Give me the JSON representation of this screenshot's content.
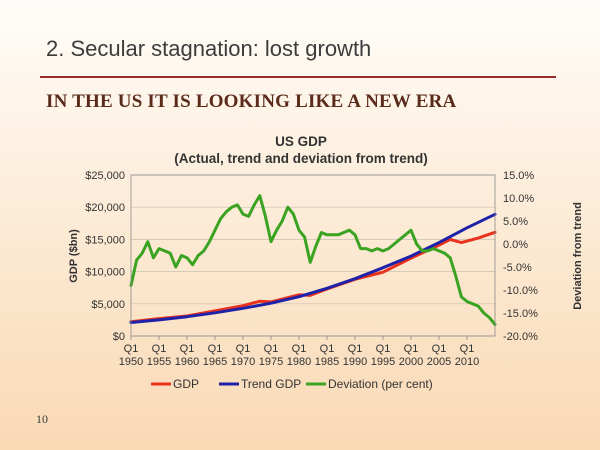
{
  "slide": {
    "heading": "2. Secular stagnation: lost growth",
    "subheading": "IN THE US IT IS LOOKING LIKE A NEW ERA",
    "page_number": "10"
  },
  "colors": {
    "gdp": "#e8321d",
    "trend": "#1e22a8",
    "deviation": "#3aa321",
    "heading_rule": "#9b2b2b"
  },
  "chart_data": {
    "type": "line",
    "title": "US GDP",
    "subtitle": "(Actual, trend and deviation from trend)",
    "ylabel": "GDP ($bn)",
    "y2label": "Deviation from trend",
    "ylim": [
      0,
      25000
    ],
    "y2lim": [
      -20,
      15
    ],
    "yticks": [
      "$0",
      "$5,000",
      "$10,000",
      "$15,000",
      "$20,000",
      "$25,000"
    ],
    "y2ticks": [
      "-20.0%",
      "-15.0%",
      "-10.0%",
      "-5.0%",
      "0.0%",
      "5.0%",
      "10.0%",
      "15.0%"
    ],
    "xticks": [
      [
        "Q1",
        "1950"
      ],
      [
        "Q1",
        "1955"
      ],
      [
        "Q1",
        "1960"
      ],
      [
        "Q1",
        "1965"
      ],
      [
        "Q1",
        "1970"
      ],
      [
        "Q1",
        "1975"
      ],
      [
        "Q1",
        "1980"
      ],
      [
        "Q1",
        "1985"
      ],
      [
        "Q1",
        "1990"
      ],
      [
        "Q1",
        "1995"
      ],
      [
        "Q1",
        "2000"
      ],
      [
        "Q1",
        "2005"
      ],
      [
        "Q1",
        "2010"
      ]
    ],
    "xlim": [
      1950,
      2015
    ],
    "grid": true,
    "legend_position": "bottom",
    "series": [
      {
        "name": "GDP",
        "axis": "left",
        "color": "#e8321d",
        "x": [
          1950,
          1955,
          1960,
          1965,
          1970,
          1973,
          1975,
          1980,
          1982,
          1985,
          1990,
          1995,
          2000,
          2005,
          2007,
          2009,
          2012,
          2015
        ],
        "y": [
          2200,
          2700,
          3100,
          3900,
          4700,
          5400,
          5300,
          6400,
          6300,
          7300,
          8800,
          9900,
          12100,
          14100,
          15000,
          14500,
          15200,
          16100
        ]
      },
      {
        "name": "Trend GDP",
        "axis": "left",
        "color": "#1e22a8",
        "x": [
          1950,
          1955,
          1960,
          1965,
          1970,
          1975,
          1980,
          1985,
          1990,
          1995,
          2000,
          2005,
          2010,
          2015
        ],
        "y": [
          2100,
          2500,
          3000,
          3600,
          4300,
          5100,
          6100,
          7400,
          8900,
          10600,
          12400,
          14500,
          16800,
          18900
        ]
      },
      {
        "name": "Deviation (per cent)",
        "axis": "right",
        "color": "#3aa321",
        "x": [
          1950,
          1951,
          1952,
          1953,
          1954,
          1955,
          1956,
          1957,
          1958,
          1959,
          1960,
          1961,
          1962,
          1963,
          1964,
          1965,
          1966,
          1967,
          1968,
          1969,
          1970,
          1971,
          1972,
          1973,
          1974,
          1975,
          1976,
          1977,
          1978,
          1979,
          1980,
          1981,
          1982,
          1983,
          1984,
          1985,
          1986,
          1987,
          1988,
          1989,
          1990,
          1991,
          1992,
          1993,
          1994,
          1995,
          1996,
          1997,
          1998,
          1999,
          2000,
          2001,
          2002,
          2003,
          2004,
          2005,
          2006,
          2007,
          2008,
          2009,
          2010,
          2011,
          2012,
          2013,
          2014,
          2015
        ],
        "y": [
          -9.0,
          -3.5,
          -2.0,
          0.5,
          -3.0,
          -1.0,
          -1.5,
          -2.0,
          -5.0,
          -2.5,
          -3.0,
          -4.5,
          -2.5,
          -1.5,
          0.5,
          3.0,
          5.5,
          7.0,
          8.0,
          8.5,
          6.5,
          6.0,
          8.5,
          10.5,
          6.0,
          0.5,
          3.0,
          5.0,
          8.0,
          6.5,
          3.0,
          1.5,
          -4.0,
          -0.5,
          2.5,
          2.0,
          2.0,
          2.0,
          2.5,
          3.0,
          2.0,
          -1.0,
          -1.0,
          -1.5,
          -1.0,
          -1.5,
          -1.0,
          0.0,
          1.0,
          2.0,
          3.0,
          0.0,
          -1.5,
          -1.5,
          -1.0,
          -1.5,
          -2.0,
          -3.0,
          -7.0,
          -11.5,
          -12.5,
          -13.0,
          -13.5,
          -15.0,
          -16.0,
          -17.5
        ]
      }
    ]
  }
}
